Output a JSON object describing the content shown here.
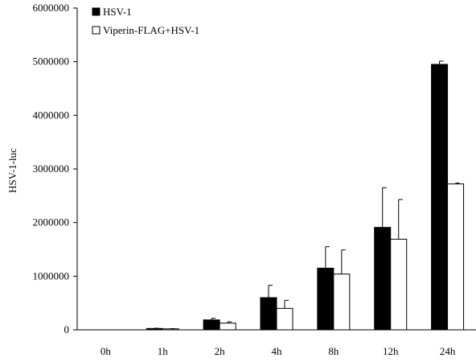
{
  "chart_data": {
    "type": "bar",
    "title": "",
    "xlabel": "",
    "ylabel": "HSV-1-luc",
    "ylim": [
      0,
      6000000
    ],
    "yticks": [
      "0",
      "1000000",
      "2000000",
      "3000000",
      "4000000",
      "5000000",
      "6000000"
    ],
    "categories": [
      "0h",
      "1h",
      "2h",
      "4h",
      "8h",
      "12h",
      "24h"
    ],
    "legend_position": "top-left",
    "grid": false,
    "series": [
      {
        "name": "HSV-1",
        "color": "#000000",
        "values": [
          0,
          25000,
          185000,
          600000,
          1150000,
          1910000,
          4950000
        ],
        "errors": [
          0,
          5000,
          30000,
          230000,
          400000,
          740000,
          60000
        ]
      },
      {
        "name": "Viperin-FLAG+HSV-1",
        "color": "#ffffff",
        "values": [
          0,
          18000,
          125000,
          400000,
          1040000,
          1690000,
          2720000
        ],
        "errors": [
          0,
          4000,
          25000,
          150000,
          450000,
          740000,
          15000
        ]
      }
    ]
  }
}
